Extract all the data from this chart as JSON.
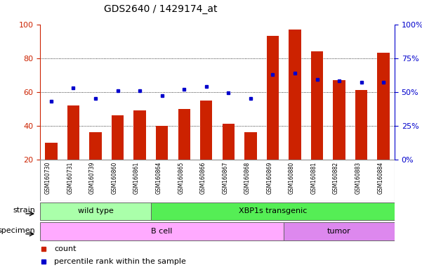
{
  "title": "GDS2640 / 1429174_at",
  "samples": [
    "GSM160730",
    "GSM160731",
    "GSM160739",
    "GSM160860",
    "GSM160861",
    "GSM160864",
    "GSM160865",
    "GSM160866",
    "GSM160867",
    "GSM160868",
    "GSM160869",
    "GSM160880",
    "GSM160881",
    "GSM160882",
    "GSM160883",
    "GSM160884"
  ],
  "counts": [
    30,
    52,
    36,
    46,
    49,
    40,
    50,
    55,
    41,
    36,
    93,
    97,
    84,
    67,
    61,
    83
  ],
  "percentiles": [
    43,
    53,
    45,
    51,
    51,
    47,
    52,
    54,
    49,
    45,
    63,
    64,
    59,
    58,
    57,
    57
  ],
  "bar_color": "#cc2200",
  "dot_color": "#0000cc",
  "ylim_left": [
    20,
    100
  ],
  "ylim_right": [
    0,
    100
  ],
  "yticks_left": [
    20,
    40,
    60,
    80,
    100
  ],
  "yticks_right": [
    0,
    25,
    50,
    75,
    100
  ],
  "yticklabels_right": [
    "0%",
    "25%",
    "50%",
    "75%",
    "100%"
  ],
  "strain_groups": [
    {
      "label": "wild type",
      "start": 0,
      "end": 4,
      "color": "#aaffaa"
    },
    {
      "label": "XBP1s transgenic",
      "start": 5,
      "end": 15,
      "color": "#55ee55"
    }
  ],
  "specimen_groups": [
    {
      "label": "B cell",
      "start": 0,
      "end": 10,
      "color": "#ffaaff"
    },
    {
      "label": "tumor",
      "start": 11,
      "end": 15,
      "color": "#dd88ee"
    }
  ],
  "legend_items": [
    {
      "label": "count",
      "color": "#cc2200"
    },
    {
      "label": "percentile rank within the sample",
      "color": "#0000cc"
    }
  ],
  "background_color": "#ffffff",
  "plot_bg_color": "#ffffff",
  "xtick_bg_color": "#cccccc",
  "title_fontsize": 10,
  "axis_color_left": "#cc2200",
  "axis_color_right": "#0000cc"
}
